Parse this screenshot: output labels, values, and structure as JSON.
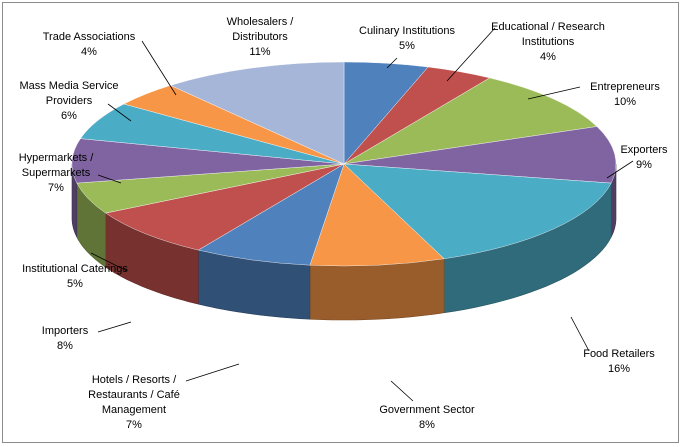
{
  "chart_data": {
    "type": "pie",
    "style": "3d",
    "title": "",
    "unit": "%",
    "legend": "none",
    "slices": [
      {
        "label": "Culinary Institutions",
        "label_lines": [
          "Culinary Institutions"
        ],
        "value": 5,
        "value_text": "5%",
        "color": "#4F81BD"
      },
      {
        "label": "Educational / Research Institutions",
        "label_lines": [
          "Educational / Research",
          "Institutions"
        ],
        "value": 4,
        "value_text": "4%",
        "color": "#C0504D"
      },
      {
        "label": "Entrepreneurs",
        "label_lines": [
          "Entrepreneurs"
        ],
        "value": 10,
        "value_text": "10%",
        "color": "#9BBB59"
      },
      {
        "label": "Exporters",
        "label_lines": [
          "Exporters"
        ],
        "value": 9,
        "value_text": "9%",
        "color": "#8064A2"
      },
      {
        "label": "Food Retailers",
        "label_lines": [
          "Food Retailers"
        ],
        "value": 16,
        "value_text": "16%",
        "color": "#4BACC6"
      },
      {
        "label": "Government Sector",
        "label_lines": [
          "Government Sector"
        ],
        "value": 8,
        "value_text": "8%",
        "color": "#F79646"
      },
      {
        "label": "Hotels / Resorts / Restaurants / Café Management",
        "label_lines": [
          "Hotels / Resorts /",
          "Restaurants / Café",
          "Management"
        ],
        "value": 7,
        "value_text": "7%",
        "color": "#4F81BD"
      },
      {
        "label": "Importers",
        "label_lines": [
          "Importers"
        ],
        "value": 8,
        "value_text": "8%",
        "color": "#C0504D"
      },
      {
        "label": "Institutional Caterings",
        "label_lines": [
          "Institutional  Caterings"
        ],
        "value": 5,
        "value_text": "5%",
        "color": "#9BBB59"
      },
      {
        "label": "Hypermarkets / Supermarkets",
        "label_lines": [
          "Hypermarkets /",
          "Supermarkets"
        ],
        "value": 7,
        "value_text": "7%",
        "color": "#8064A2"
      },
      {
        "label": "Mass Media Service Providers",
        "label_lines": [
          "Mass Media Service",
          "Providers"
        ],
        "value": 6,
        "value_text": "6%",
        "color": "#4BACC6"
      },
      {
        "label": "Trade Associations",
        "label_lines": [
          "Trade Associations"
        ],
        "value": 4,
        "value_text": "4%",
        "color": "#F79646"
      },
      {
        "label": "Wholesalers / Distributors",
        "label_lines": [
          "Wholesalers /",
          "Distributors"
        ],
        "value": 11,
        "value_text": "11%",
        "color": "#A5B6D8"
      }
    ]
  }
}
